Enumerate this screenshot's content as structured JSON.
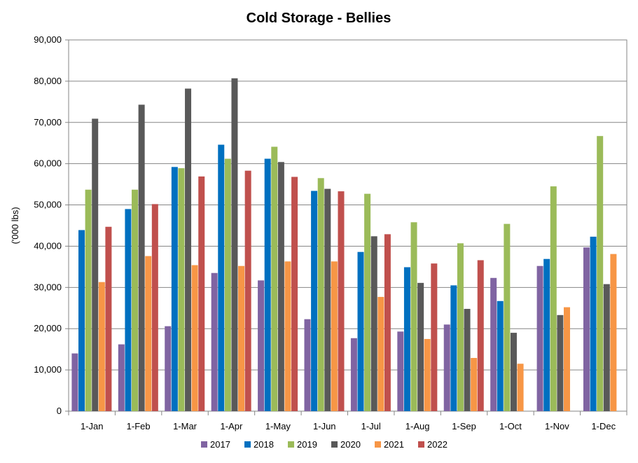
{
  "chart_data": {
    "type": "bar",
    "title": "Cold Storage - Bellies",
    "xlabel": "",
    "ylabel": "('000 lbs)",
    "ylim": [
      0,
      90000
    ],
    "yticks": [
      0,
      10000,
      20000,
      30000,
      40000,
      50000,
      60000,
      70000,
      80000,
      90000
    ],
    "ytick_labels": [
      "0",
      "10,000",
      "20,000",
      "30,000",
      "40,000",
      "50,000",
      "60,000",
      "70,000",
      "80,000",
      "90,000"
    ],
    "grid": true,
    "legend_position": "bottom",
    "categories": [
      "1-Jan",
      "1-Feb",
      "1-Mar",
      "1-Apr",
      "1-May",
      "1-Jun",
      "1-Jul",
      "1-Aug",
      "1-Sep",
      "1-Oct",
      "1-Nov",
      "1-Dec"
    ],
    "series": [
      {
        "name": "2017",
        "color": "#8064A2",
        "values": [
          14000,
          16200,
          20600,
          33500,
          31700,
          22300,
          17700,
          19300,
          21000,
          32300,
          35200,
          39700
        ]
      },
      {
        "name": "2018",
        "color": "#0070C0",
        "values": [
          43900,
          49000,
          59200,
          64600,
          61200,
          53400,
          38600,
          34900,
          30500,
          26700,
          36900,
          42300
        ]
      },
      {
        "name": "2019",
        "color": "#9BBB59",
        "values": [
          53700,
          53700,
          58900,
          61200,
          64100,
          56500,
          52700,
          45800,
          40700,
          45400,
          54500,
          66700
        ]
      },
      {
        "name": "2020",
        "color": "#595959",
        "values": [
          70900,
          74300,
          78200,
          80700,
          60400,
          53900,
          42400,
          31100,
          24800,
          19000,
          23300,
          30800
        ]
      },
      {
        "name": "2021",
        "color": "#F79646",
        "values": [
          31300,
          37600,
          35400,
          35200,
          36300,
          36300,
          27700,
          17500,
          12900,
          11500,
          25200,
          38100
        ]
      },
      {
        "name": "2022",
        "color": "#C0504D",
        "values": [
          44700,
          50200,
          56900,
          58300,
          56800,
          53300,
          42900,
          35800,
          36600,
          null,
          null,
          null
        ]
      }
    ]
  }
}
